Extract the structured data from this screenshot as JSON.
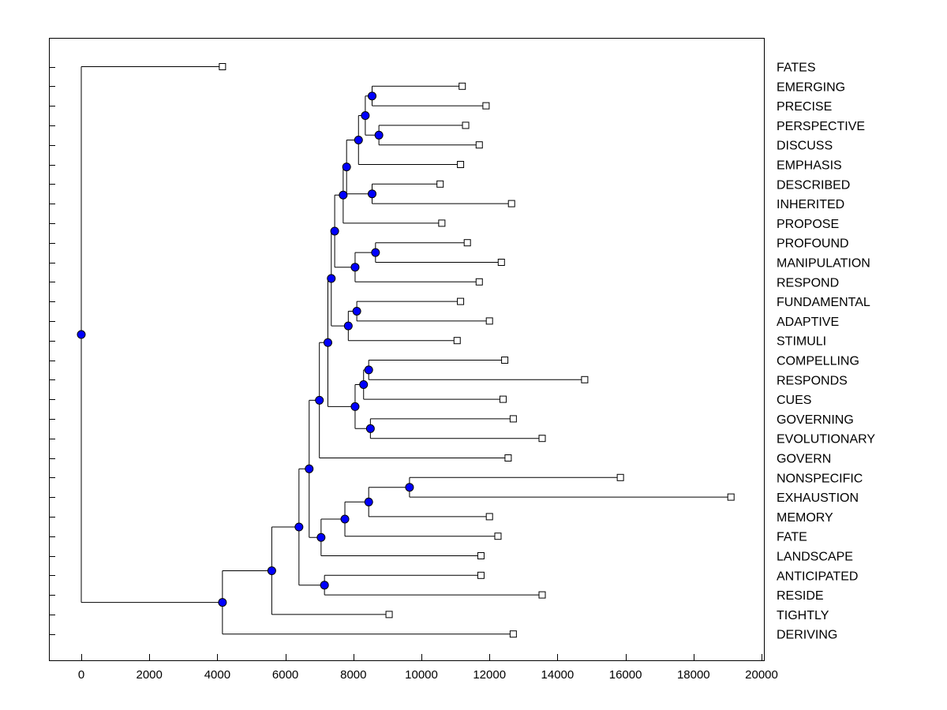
{
  "chart_data": {
    "type": "dendrogram",
    "title": "",
    "xlabel": "",
    "ylabel": "",
    "xlim": [
      -950,
      20000
    ],
    "xticks": [
      0,
      2000,
      4000,
      6000,
      8000,
      10000,
      12000,
      14000,
      16000,
      18000,
      20000
    ],
    "leaf_marker": "open-square",
    "node_marker": "filled-circle",
    "node_color": "#0000ff",
    "leaves": [
      {
        "label": "FATES",
        "value": 4150
      },
      {
        "label": "EMERGING",
        "value": 11200
      },
      {
        "label": "PRECISE",
        "value": 11900
      },
      {
        "label": "PERSPECTIVE",
        "value": 11300
      },
      {
        "label": "DISCUSS",
        "value": 11700
      },
      {
        "label": "EMPHASIS",
        "value": 11150
      },
      {
        "label": "DESCRIBED",
        "value": 10550
      },
      {
        "label": "INHERITED",
        "value": 12650
      },
      {
        "label": "PROPOSE",
        "value": 10600
      },
      {
        "label": "PROFOUND",
        "value": 11350
      },
      {
        "label": "MANIPULATION",
        "value": 12350
      },
      {
        "label": "RESPOND",
        "value": 11700
      },
      {
        "label": "FUNDAMENTAL",
        "value": 11150
      },
      {
        "label": "ADAPTIVE",
        "value": 12000
      },
      {
        "label": "STIMULI",
        "value": 11050
      },
      {
        "label": "COMPELLING",
        "value": 12450
      },
      {
        "label": "RESPONDS",
        "value": 14800
      },
      {
        "label": "CUES",
        "value": 12400
      },
      {
        "label": "GOVERNING",
        "value": 12700
      },
      {
        "label": "EVOLUTIONARY",
        "value": 13550
      },
      {
        "label": "GOVERN",
        "value": 12550
      },
      {
        "label": "NONSPECIFIC",
        "value": 15850
      },
      {
        "label": "EXHAUSTION",
        "value": 19100
      },
      {
        "label": "MEMORY",
        "value": 12000
      },
      {
        "label": "FATE",
        "value": 12250
      },
      {
        "label": "LANDSCAPE",
        "value": 11750
      },
      {
        "label": "ANTICIPATED",
        "value": 11750
      },
      {
        "label": "RESIDE",
        "value": 13550
      },
      {
        "label": "TIGHTLY",
        "value": 9050
      },
      {
        "label": "DERIVING",
        "value": 12700
      }
    ],
    "merges": [
      {
        "id": "m1",
        "value": 8550,
        "children": [
          "EMERGING",
          "PRECISE"
        ]
      },
      {
        "id": "m2",
        "value": 8750,
        "children": [
          "PERSPECTIVE",
          "DISCUSS"
        ]
      },
      {
        "id": "m3",
        "value": 8350,
        "children": [
          "m1",
          "m2"
        ]
      },
      {
        "id": "m4",
        "value": 8150,
        "children": [
          "m3",
          "EMPHASIS"
        ]
      },
      {
        "id": "m5",
        "value": 7800,
        "children": [
          "m4",
          "m6"
        ]
      },
      {
        "id": "m6",
        "value": 8550,
        "children": [
          "DESCRIBED",
          "INHERITED"
        ]
      },
      {
        "id": "m7",
        "value": 7700,
        "children": [
          "m5",
          "PROPOSE"
        ]
      },
      {
        "id": "m8",
        "value": 8650,
        "children": [
          "PROFOUND",
          "MANIPULATION"
        ]
      },
      {
        "id": "m9",
        "value": 8050,
        "children": [
          "m8",
          "RESPOND"
        ]
      },
      {
        "id": "m10",
        "value": 7450,
        "children": [
          "m7",
          "m9"
        ]
      },
      {
        "id": "m11",
        "value": 8100,
        "children": [
          "FUNDAMENTAL",
          "ADAPTIVE"
        ]
      },
      {
        "id": "m12",
        "value": 7850,
        "children": [
          "m11",
          "STIMULI"
        ]
      },
      {
        "id": "m13",
        "value": 7350,
        "children": [
          "m10",
          "m12"
        ]
      },
      {
        "id": "m14",
        "value": 8450,
        "children": [
          "COMPELLING",
          "RESPONDS"
        ]
      },
      {
        "id": "m15",
        "value": 8300,
        "children": [
          "m14",
          "CUES"
        ]
      },
      {
        "id": "m16",
        "value": 8500,
        "children": [
          "GOVERNING",
          "EVOLUTIONARY"
        ]
      },
      {
        "id": "m17",
        "value": 8050,
        "children": [
          "m15",
          "m16"
        ]
      },
      {
        "id": "m18",
        "value": 7250,
        "children": [
          "m13",
          "m17"
        ]
      },
      {
        "id": "m19",
        "value": 7000,
        "children": [
          "m18",
          "GOVERN"
        ]
      },
      {
        "id": "m20",
        "value": 9650,
        "children": [
          "NONSPECIFIC",
          "EXHAUSTION"
        ]
      },
      {
        "id": "m21",
        "value": 8450,
        "children": [
          "m20",
          "MEMORY"
        ]
      },
      {
        "id": "m22",
        "value": 7750,
        "children": [
          "m21",
          "FATE"
        ]
      },
      {
        "id": "m23",
        "value": 7050,
        "children": [
          "m22",
          "LANDSCAPE"
        ]
      },
      {
        "id": "m24",
        "value": 6700,
        "children": [
          "m19",
          "m23"
        ]
      },
      {
        "id": "m25",
        "value": 7150,
        "children": [
          "ANTICIPATED",
          "RESIDE"
        ]
      },
      {
        "id": "m26",
        "value": 6400,
        "children": [
          "m24",
          "m25"
        ]
      },
      {
        "id": "m27",
        "value": 5600,
        "children": [
          "m26",
          "TIGHTLY"
        ]
      },
      {
        "id": "m28",
        "value": 4150,
        "children": [
          "m27",
          "DERIVING"
        ]
      },
      {
        "id": "root",
        "value": 0,
        "children": [
          "FATES",
          "m28"
        ]
      }
    ]
  }
}
